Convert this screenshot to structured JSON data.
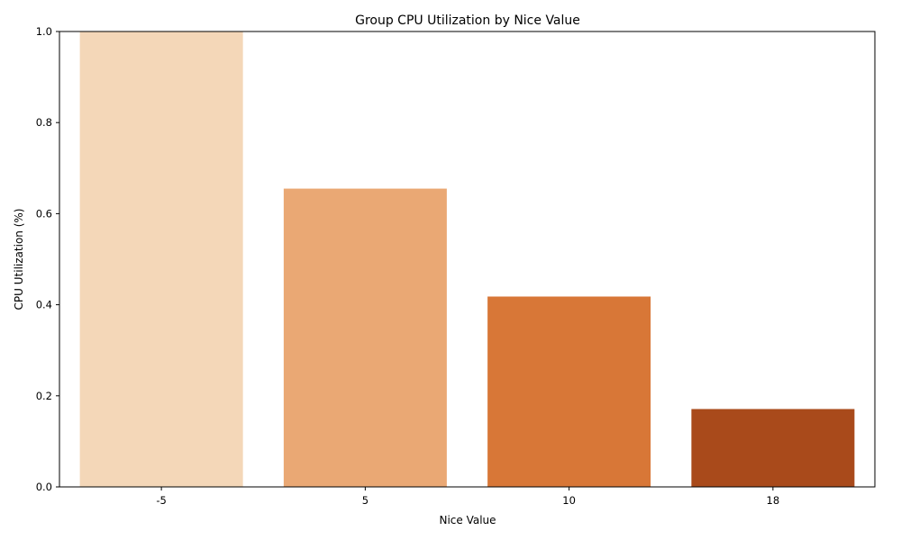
{
  "chart_data": {
    "type": "bar",
    "title": "Group CPU Utilization by Nice Value",
    "xlabel": "Nice Value",
    "ylabel": "CPU Utilization (%)",
    "categories": [
      "-5",
      "5",
      "10",
      "18"
    ],
    "values": [
      1.0,
      0.655,
      0.418,
      0.171
    ],
    "colors": [
      "#f4d7b8",
      "#eaa874",
      "#d87737",
      "#a94a1b"
    ],
    "ylim": [
      0,
      1.0
    ],
    "yticks": [
      0.0,
      0.2,
      0.4,
      0.6,
      0.8,
      1.0
    ],
    "ytick_labels": [
      "0.0",
      "0.2",
      "0.4",
      "0.6",
      "0.8",
      "1.0"
    ],
    "grid": false,
    "legend": "none"
  }
}
